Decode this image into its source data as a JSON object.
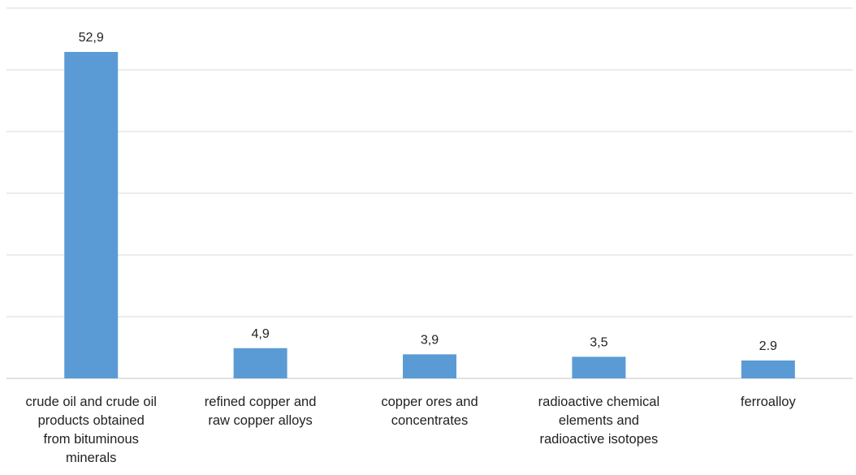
{
  "chart_data": {
    "type": "bar",
    "title": "",
    "xlabel": "",
    "ylabel": "",
    "categories": [
      "crude oil and crude oil products obtained from bituminous minerals",
      "refined copper and raw copper alloys",
      "copper ores and concentrates",
      "radioactive chemical elements and radioactive isotopes",
      "ferroalloy"
    ],
    "category_lines": [
      [
        "crude oil and crude oil",
        "products obtained",
        "from bituminous",
        "minerals"
      ],
      [
        "refined copper and",
        "raw copper alloys"
      ],
      [
        "copper ores and",
        "concentrates"
      ],
      [
        "radioactive chemical",
        "elements and",
        "radioactive isotopes"
      ],
      [
        "ferroalloy"
      ]
    ],
    "values": [
      52.9,
      4.9,
      3.9,
      3.5,
      2.9
    ],
    "data_labels": [
      "52,9",
      "4,9",
      "3,9",
      "3,5",
      "2.9"
    ],
    "ylim": [
      0,
      60
    ],
    "y_gridlines": [
      0,
      10,
      20,
      30,
      40,
      50,
      60
    ],
    "grid": true,
    "legend": "none",
    "bar_color": "#5b9bd5",
    "grid_color": "#d9d9d9"
  }
}
